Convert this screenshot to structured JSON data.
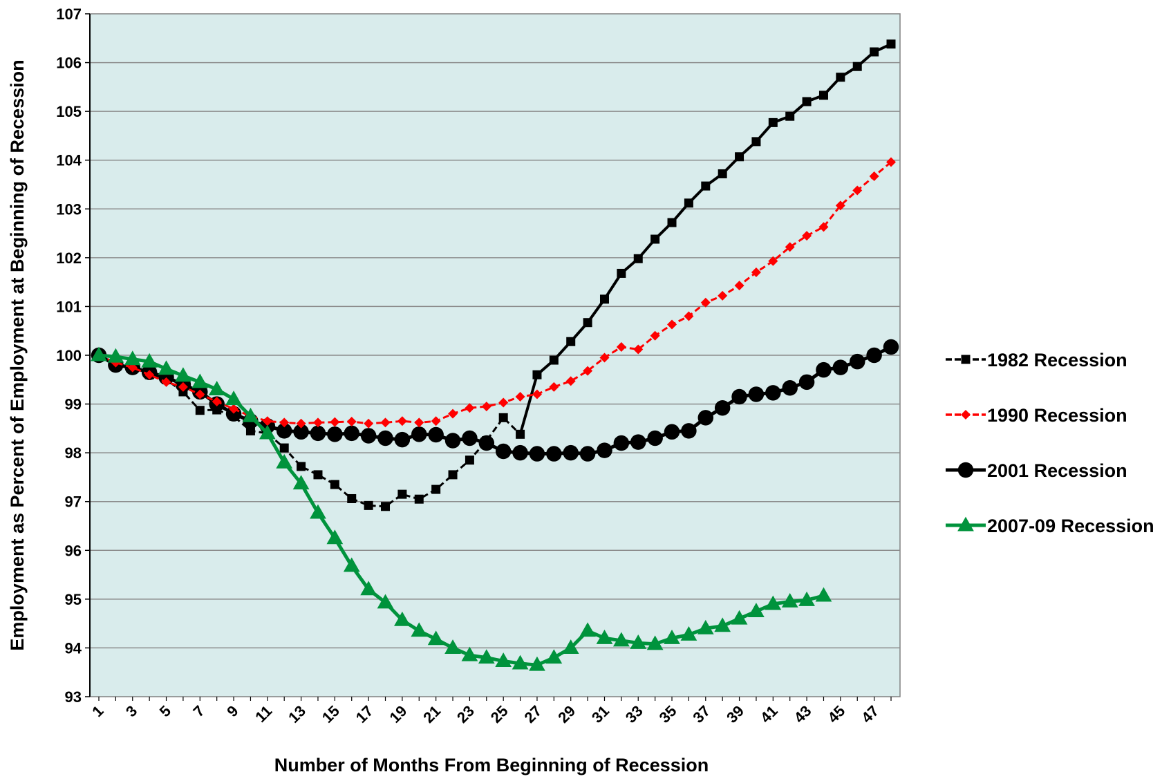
{
  "chart_data": {
    "type": "line",
    "title": "",
    "xlabel": "Number of Months From Beginning of Recession",
    "ylabel": "Employment as Percent of Employment at Beginning of Recession",
    "ylim": [
      93,
      107
    ],
    "yticks": [
      "93",
      "94",
      "95",
      "96",
      "97",
      "98",
      "99",
      "100",
      "101",
      "102",
      "103",
      "104",
      "105",
      "106",
      "107"
    ],
    "xlim": [
      1,
      48
    ],
    "xticks": [
      "1",
      "3",
      "5",
      "7",
      "9",
      "11",
      "13",
      "15",
      "17",
      "19",
      "21",
      "23",
      "25",
      "27",
      "29",
      "31",
      "33",
      "35",
      "37",
      "39",
      "41",
      "43",
      "45",
      "47"
    ],
    "grid": true,
    "plot_background": "#d9ecec",
    "legend_position": "right",
    "series": [
      {
        "name": "1982 Recession",
        "color": "#000000",
        "marker": "square",
        "style": "dashed-then-solid",
        "values": [
          100.0,
          99.8,
          99.75,
          99.6,
          99.5,
          99.25,
          98.87,
          98.88,
          98.75,
          98.45,
          98.4,
          98.1,
          97.72,
          97.55,
          97.35,
          97.06,
          96.92,
          96.9,
          97.15,
          97.05,
          97.25,
          97.55,
          97.85,
          98.25,
          98.72,
          98.38,
          99.6,
          99.9,
          100.28,
          100.67,
          101.15,
          101.68,
          101.98,
          102.38,
          102.72,
          103.12,
          103.47,
          103.72,
          104.07,
          104.38,
          104.77,
          104.9,
          105.2,
          105.33,
          105.7,
          105.92,
          106.22,
          106.38
        ]
      },
      {
        "name": "1990 Recession",
        "color": "#ff0000",
        "marker": "diamond",
        "style": "dashed",
        "values": [
          100.0,
          99.85,
          99.75,
          99.6,
          99.45,
          99.35,
          99.2,
          99.05,
          98.9,
          98.75,
          98.65,
          98.62,
          98.6,
          98.62,
          98.63,
          98.64,
          98.6,
          98.62,
          98.65,
          98.62,
          98.65,
          98.8,
          98.92,
          98.95,
          99.03,
          99.15,
          99.2,
          99.35,
          99.47,
          99.68,
          99.95,
          100.17,
          100.12,
          100.4,
          100.63,
          100.8,
          101.08,
          101.22,
          101.43,
          101.7,
          101.93,
          102.22,
          102.45,
          102.63,
          103.07,
          103.38,
          103.67,
          103.96
        ]
      },
      {
        "name": "2001 Recession",
        "color": "#000000",
        "marker": "circle",
        "style": "solid",
        "values": [
          100.0,
          99.8,
          99.75,
          99.65,
          99.55,
          99.4,
          99.25,
          99.0,
          98.8,
          98.65,
          98.55,
          98.45,
          98.43,
          98.4,
          98.38,
          98.4,
          98.35,
          98.3,
          98.27,
          98.38,
          98.37,
          98.25,
          98.3,
          98.2,
          98.03,
          98.0,
          97.98,
          97.98,
          98.0,
          97.98,
          98.05,
          98.2,
          98.22,
          98.3,
          98.43,
          98.45,
          98.72,
          98.92,
          99.15,
          99.2,
          99.23,
          99.33,
          99.45,
          99.7,
          99.75,
          99.87,
          100.0,
          100.17
        ]
      },
      {
        "name": "2007-09 Recession",
        "color": "#00933c",
        "marker": "triangle",
        "style": "solid",
        "values": [
          100.0,
          99.97,
          99.92,
          99.87,
          99.72,
          99.58,
          99.45,
          99.3,
          99.1,
          98.75,
          98.4,
          97.8,
          97.37,
          96.77,
          96.25,
          95.68,
          95.2,
          94.93,
          94.57,
          94.35,
          94.18,
          94.0,
          93.85,
          93.8,
          93.73,
          93.68,
          93.65,
          93.8,
          94.0,
          94.35,
          94.2,
          94.15,
          94.1,
          94.08,
          94.2,
          94.27,
          94.4,
          94.45,
          94.6,
          94.75,
          94.9,
          94.95,
          94.98,
          95.07
        ]
      }
    ]
  }
}
